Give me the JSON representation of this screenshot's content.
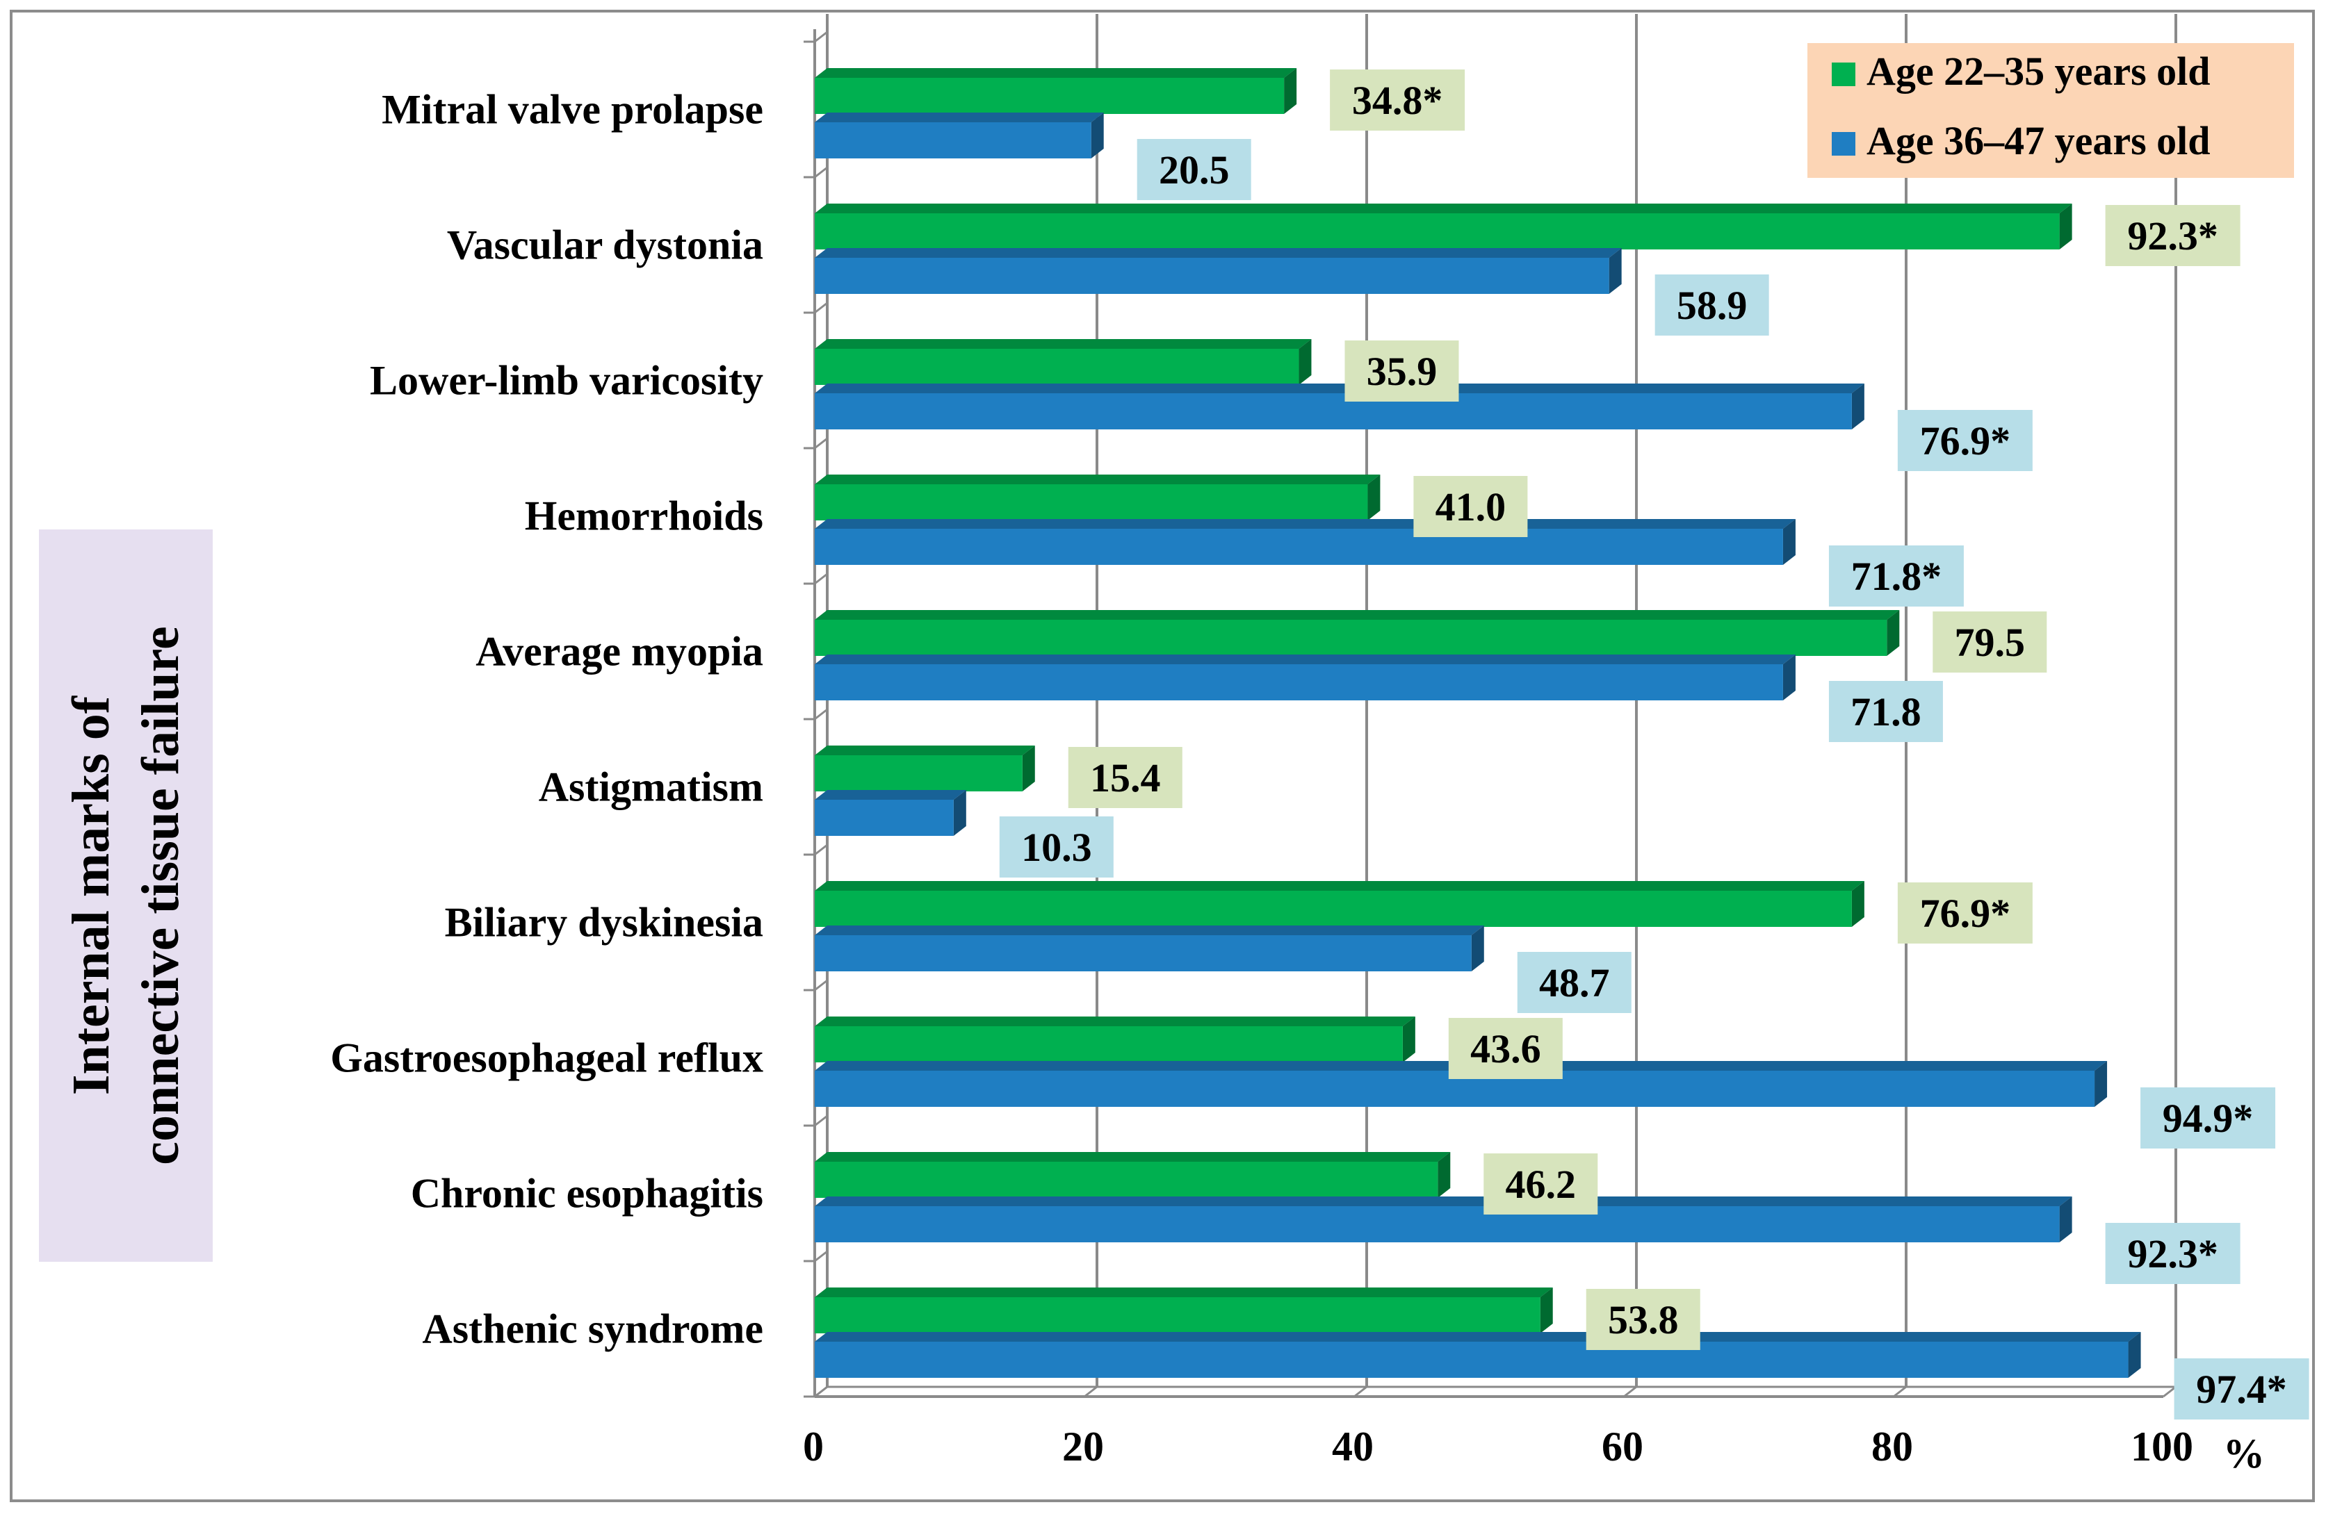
{
  "chart_data": {
    "type": "bar",
    "orientation": "horizontal",
    "ylabel_line1": "Internal marks of",
    "ylabel_line2": "connective tissue failure",
    "x_unit": "%",
    "xlim": [
      0,
      100
    ],
    "x_ticks": [
      0,
      20,
      40,
      60,
      80,
      100
    ],
    "grid": true,
    "legend_position": "top-right",
    "categories": [
      "Mitral valve prolapse",
      "Vascular dystonia",
      "Lower-limb varicosity",
      "Hemorrhoids",
      "Average myopia",
      "Astigmatism",
      "Biliary dyskinesia",
      "Gastroesophageal reflux",
      "Chronic esophagitis",
      "Asthenic syndrome"
    ],
    "series": [
      {
        "name": "Age 22–35 years old",
        "color": "#00b050",
        "label_bg": "#d7e4bd",
        "values": [
          34.8,
          92.3,
          35.9,
          41.0,
          79.5,
          15.4,
          76.9,
          43.6,
          46.2,
          53.8
        ],
        "labels": [
          "34.8*",
          "92.3*",
          "35.9",
          "41.0",
          "79.5",
          "15.4",
          "76.9*",
          "43.6",
          "46.2",
          "53.8"
        ]
      },
      {
        "name": "Age 36–47 years old",
        "color": "#1f7ec2",
        "label_bg": "#b7dee8",
        "values": [
          20.5,
          58.9,
          76.9,
          71.8,
          71.8,
          10.3,
          48.7,
          94.9,
          92.3,
          97.4
        ],
        "labels": [
          "20.5",
          "58.9",
          "76.9*",
          "71.8*",
          "71.8",
          "10.3",
          "48.7",
          "94.9*",
          "92.3*",
          "97.4*"
        ]
      }
    ],
    "legend_bg": "#fcd5b5",
    "ylabel_bg": "#e6dff0"
  }
}
